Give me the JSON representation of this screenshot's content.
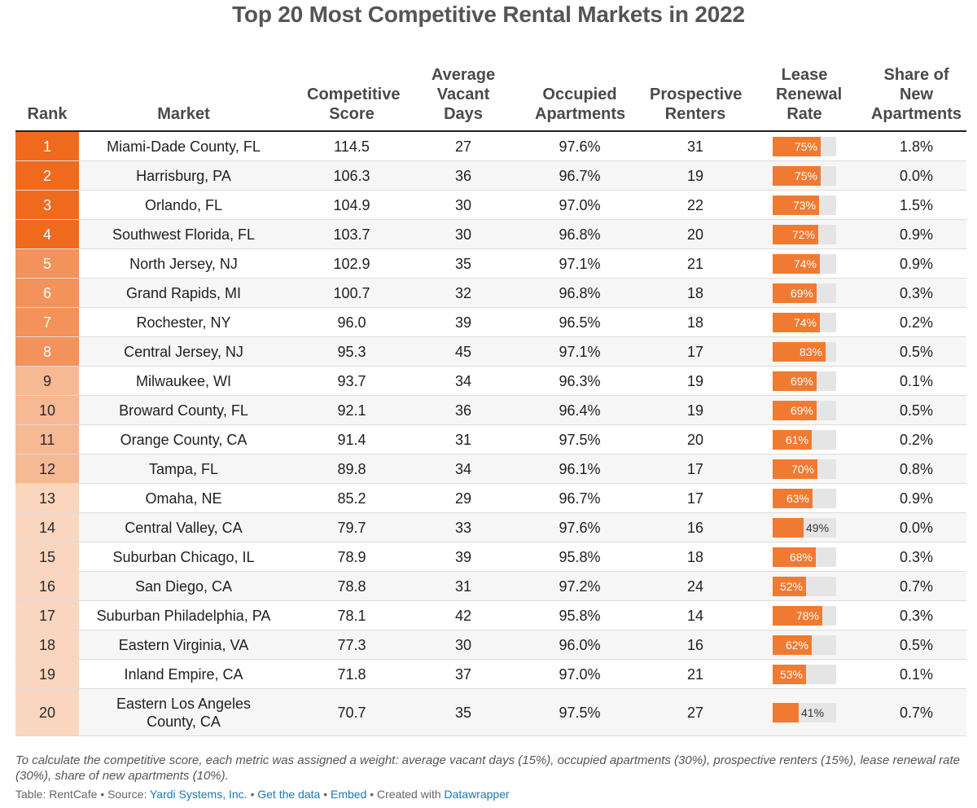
{
  "title": "Top 20 Most Competitive Rental Markets in 2022",
  "colors": {
    "rank_1_4": "#f06a1e",
    "rank_5_8": "#f4925b",
    "rank_9_12": "#f7b894",
    "rank_13_20": "#fbd6bf",
    "bar": "#f07a32",
    "bar_track": "#e5e5e5",
    "link": "#1d77b4"
  },
  "chart_data": {
    "type": "table",
    "columns": [
      "Rank",
      "Market",
      "Competitive Score",
      "Average Vacant Days",
      "Occupied Apartments",
      "Prospective Renters",
      "Lease Renewal Rate",
      "Share of New Apartments"
    ],
    "rows": [
      {
        "rank": "1",
        "market": "Miami-Dade County, FL",
        "score": "114.5",
        "vacant_days": "27",
        "occupied": "97.6%",
        "renters": "31",
        "renewal": 75,
        "renewal_label": "75%",
        "new_share": "1.8%"
      },
      {
        "rank": "2",
        "market": "Harrisburg, PA",
        "score": "106.3",
        "vacant_days": "36",
        "occupied": "96.7%",
        "renters": "19",
        "renewal": 75,
        "renewal_label": "75%",
        "new_share": "0.0%"
      },
      {
        "rank": "3",
        "market": "Orlando, FL",
        "score": "104.9",
        "vacant_days": "30",
        "occupied": "97.0%",
        "renters": "22",
        "renewal": 73,
        "renewal_label": "73%",
        "new_share": "1.5%"
      },
      {
        "rank": "4",
        "market": "Southwest Florida, FL",
        "score": "103.7",
        "vacant_days": "30",
        "occupied": "96.8%",
        "renters": "20",
        "renewal": 72,
        "renewal_label": "72%",
        "new_share": "0.9%"
      },
      {
        "rank": "5",
        "market": "North Jersey, NJ",
        "score": "102.9",
        "vacant_days": "35",
        "occupied": "97.1%",
        "renters": "21",
        "renewal": 74,
        "renewal_label": "74%",
        "new_share": "0.9%"
      },
      {
        "rank": "6",
        "market": "Grand Rapids, MI",
        "score": "100.7",
        "vacant_days": "32",
        "occupied": "96.8%",
        "renters": "18",
        "renewal": 69,
        "renewal_label": "69%",
        "new_share": "0.3%"
      },
      {
        "rank": "7",
        "market": "Rochester, NY",
        "score": "96.0",
        "vacant_days": "39",
        "occupied": "96.5%",
        "renters": "18",
        "renewal": 74,
        "renewal_label": "74%",
        "new_share": "0.2%"
      },
      {
        "rank": "8",
        "market": "Central Jersey, NJ",
        "score": "95.3",
        "vacant_days": "45",
        "occupied": "97.1%",
        "renters": "17",
        "renewal": 83,
        "renewal_label": "83%",
        "new_share": "0.5%"
      },
      {
        "rank": "9",
        "market": "Milwaukee, WI",
        "score": "93.7",
        "vacant_days": "34",
        "occupied": "96.3%",
        "renters": "19",
        "renewal": 69,
        "renewal_label": "69%",
        "new_share": "0.1%"
      },
      {
        "rank": "10",
        "market": "Broward County, FL",
        "score": "92.1",
        "vacant_days": "36",
        "occupied": "96.4%",
        "renters": "19",
        "renewal": 69,
        "renewal_label": "69%",
        "new_share": "0.5%"
      },
      {
        "rank": "11",
        "market": "Orange County, CA",
        "score": "91.4",
        "vacant_days": "31",
        "occupied": "97.5%",
        "renters": "20",
        "renewal": 61,
        "renewal_label": "61%",
        "new_share": "0.2%"
      },
      {
        "rank": "12",
        "market": "Tampa, FL",
        "score": "89.8",
        "vacant_days": "34",
        "occupied": "96.1%",
        "renters": "17",
        "renewal": 70,
        "renewal_label": "70%",
        "new_share": "0.8%"
      },
      {
        "rank": "13",
        "market": "Omaha, NE",
        "score": "85.2",
        "vacant_days": "29",
        "occupied": "96.7%",
        "renters": "17",
        "renewal": 63,
        "renewal_label": "63%",
        "new_share": "0.9%"
      },
      {
        "rank": "14",
        "market": "Central Valley, CA",
        "score": "79.7",
        "vacant_days": "33",
        "occupied": "97.6%",
        "renters": "16",
        "renewal": 49,
        "renewal_label": "49%",
        "new_share": "0.0%"
      },
      {
        "rank": "15",
        "market": "Suburban Chicago, IL",
        "score": "78.9",
        "vacant_days": "39",
        "occupied": "95.8%",
        "renters": "18",
        "renewal": 68,
        "renewal_label": "68%",
        "new_share": "0.3%"
      },
      {
        "rank": "16",
        "market": "San Diego, CA",
        "score": "78.8",
        "vacant_days": "31",
        "occupied": "97.2%",
        "renters": "24",
        "renewal": 52,
        "renewal_label": "52%",
        "new_share": "0.7%"
      },
      {
        "rank": "17",
        "market": "Suburban Philadelphia, PA",
        "score": "78.1",
        "vacant_days": "42",
        "occupied": "95.8%",
        "renters": "14",
        "renewal": 78,
        "renewal_label": "78%",
        "new_share": "0.3%"
      },
      {
        "rank": "18",
        "market": "Eastern Virginia, VA",
        "score": "77.3",
        "vacant_days": "30",
        "occupied": "96.0%",
        "renters": "16",
        "renewal": 62,
        "renewal_label": "62%",
        "new_share": "0.5%"
      },
      {
        "rank": "19",
        "market": "Inland Empire, CA",
        "score": "71.8",
        "vacant_days": "37",
        "occupied": "97.0%",
        "renters": "21",
        "renewal": 53,
        "renewal_label": "53%",
        "new_share": "0.1%"
      },
      {
        "rank": "20",
        "market": "Eastern Los Angeles County, CA",
        "score": "70.7",
        "vacant_days": "35",
        "occupied": "97.5%",
        "renters": "27",
        "renewal": 41,
        "renewal_label": "41%",
        "new_share": "0.7%"
      }
    ]
  },
  "footnote": "To calculate the competitive score, each metric was assigned a weight: average vacant days (15%), occupied apartments (30%), prospective renters (15%), lease renewal rate (30%), share of new apartments (10%).",
  "credits": {
    "table": "Table: RentCafe",
    "sep": "•",
    "source_prefix": "Source:",
    "source": "Yardi Systems, Inc.",
    "get_data": "Get the data",
    "embed": "Embed",
    "created_with": "Created with",
    "datawrapper": "Datawrapper"
  }
}
